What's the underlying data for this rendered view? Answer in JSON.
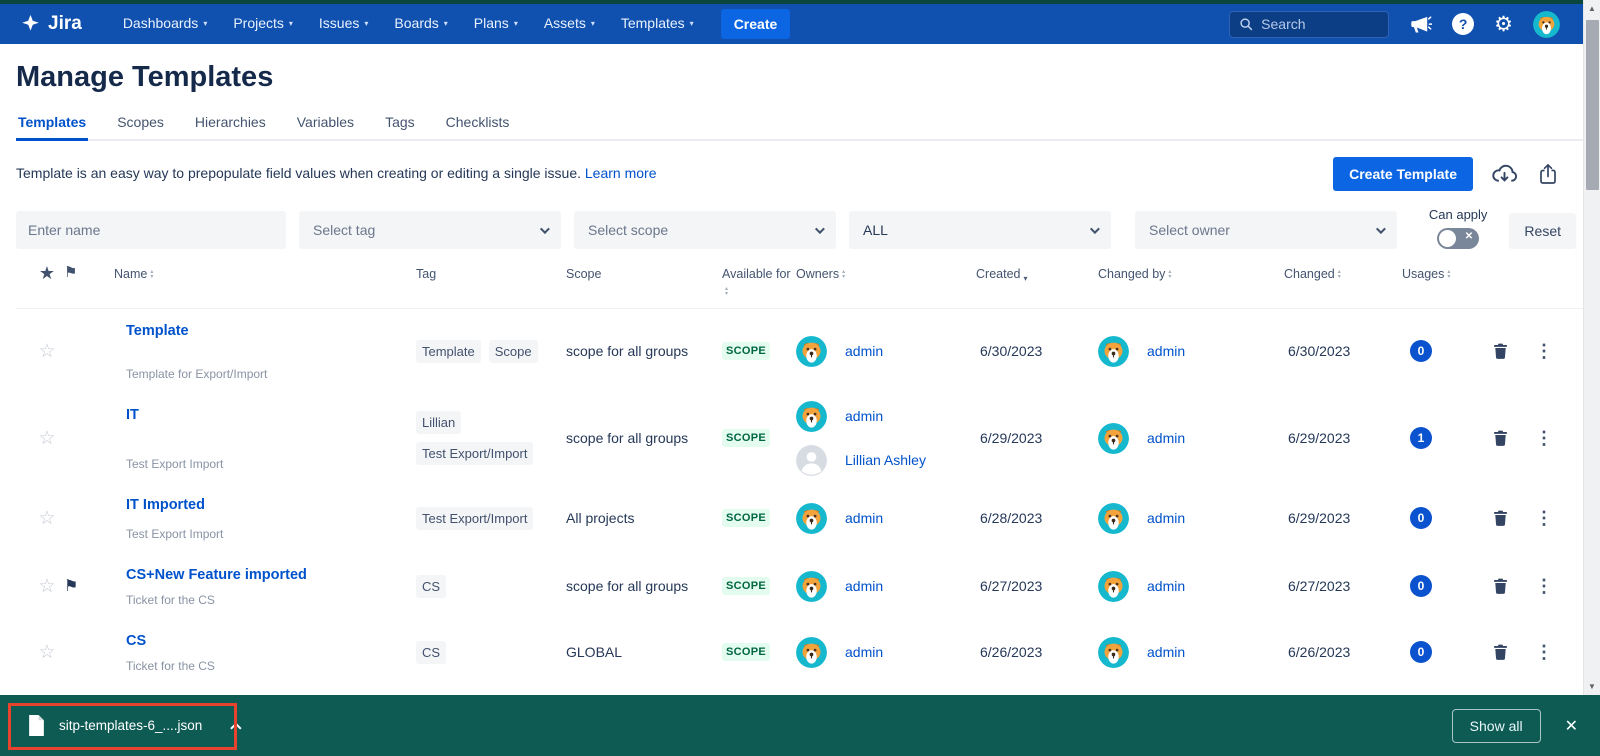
{
  "nav": {
    "brand": "Jira",
    "items": [
      "Dashboards",
      "Projects",
      "Issues",
      "Boards",
      "Plans",
      "Assets",
      "Templates"
    ],
    "create_label": "Create",
    "search_placeholder": "Search"
  },
  "page": {
    "title": "Manage Templates",
    "tabs": [
      {
        "label": "Templates",
        "active": true
      },
      {
        "label": "Scopes",
        "active": false
      },
      {
        "label": "Hierarchies",
        "active": false
      },
      {
        "label": "Variables",
        "active": false
      },
      {
        "label": "Tags",
        "active": false
      },
      {
        "label": "Checklists",
        "active": false
      }
    ],
    "description": "Template is an easy way to prepopulate field values when creating or editing a single issue.",
    "learn_more": "Learn more",
    "create_template_label": "Create Template"
  },
  "filters": {
    "name_placeholder": "Enter name",
    "tag_placeholder": "Select tag",
    "scope_placeholder": "Select scope",
    "available_value": "ALL",
    "owner_placeholder": "Select owner",
    "can_apply_label": "Can apply",
    "toggle_state": "off",
    "reset_label": "Reset"
  },
  "table": {
    "headers": [
      {
        "label": "Name",
        "sort": "both"
      },
      {
        "label": "Tag",
        "sort": "none"
      },
      {
        "label": "Scope",
        "sort": "none"
      },
      {
        "label": "Available for",
        "sort": "both"
      },
      {
        "label": "Owners",
        "sort": "both"
      },
      {
        "label": "Created",
        "sort": "desc"
      },
      {
        "label": "Changed by",
        "sort": "both"
      },
      {
        "label": "Changed",
        "sort": "both"
      },
      {
        "label": "Usages",
        "sort": "both"
      }
    ],
    "rows": [
      {
        "name": "Template",
        "description": "Template for Export/Import",
        "starred": false,
        "flagged": false,
        "tags": [
          "Template",
          "Scope"
        ],
        "scope": "scope for all groups",
        "available_for": "SCOPE",
        "owners": [
          {
            "name": "admin",
            "avatar": "dog"
          }
        ],
        "created": "6/30/2023",
        "changed_by": {
          "name": "admin",
          "avatar": "dog"
        },
        "changed": "6/30/2023",
        "usages": "0"
      },
      {
        "name": "IT",
        "description": "Test Export Import",
        "starred": false,
        "flagged": false,
        "tags": [
          "Lillian",
          "Test Export/Import"
        ],
        "scope": "scope for all groups",
        "available_for": "SCOPE",
        "owners": [
          {
            "name": "admin",
            "avatar": "dog"
          },
          {
            "name": "Lillian Ashley",
            "avatar": "person"
          }
        ],
        "created": "6/29/2023",
        "changed_by": {
          "name": "admin",
          "avatar": "dog"
        },
        "changed": "6/29/2023",
        "usages": "1"
      },
      {
        "name": "IT Imported",
        "description": "Test Export Import",
        "starred": false,
        "flagged": false,
        "tags": [
          "Test Export/Import"
        ],
        "scope": "All projects",
        "available_for": "SCOPE",
        "owners": [
          {
            "name": "admin",
            "avatar": "dog"
          }
        ],
        "created": "6/28/2023",
        "changed_by": {
          "name": "admin",
          "avatar": "dog"
        },
        "changed": "6/29/2023",
        "usages": "0"
      },
      {
        "name": "CS+New Feature imported",
        "description": "Ticket for the CS",
        "starred": false,
        "flagged": true,
        "tags": [
          "CS"
        ],
        "scope": "scope for all groups",
        "available_for": "SCOPE",
        "owners": [
          {
            "name": "admin",
            "avatar": "dog"
          }
        ],
        "created": "6/27/2023",
        "changed_by": {
          "name": "admin",
          "avatar": "dog"
        },
        "changed": "6/27/2023",
        "usages": "0"
      },
      {
        "name": "CS",
        "description": "Ticket for the CS",
        "starred": false,
        "flagged": false,
        "tags": [
          "CS"
        ],
        "scope": "GLOBAL",
        "available_for": "SCOPE",
        "owners": [
          {
            "name": "admin",
            "avatar": "dog"
          }
        ],
        "created": "6/26/2023",
        "changed_by": {
          "name": "admin",
          "avatar": "dog"
        },
        "changed": "6/26/2023",
        "usages": "0"
      }
    ]
  },
  "download_bar": {
    "filename": "sitp-templates-6_....json",
    "show_all_label": "Show all"
  },
  "colors": {
    "nav_blue": "#1050AF",
    "accent_blue": "#0052CC",
    "create_button_blue": "#0C66E4",
    "scope_badge_bg": "#E3FCEF",
    "scope_badge_text": "#006644",
    "usages_badge": "#0B53CE",
    "shelf_teal": "#0E5B54",
    "annotation_red": "#E8432C",
    "avatar_teal": "#16B8CE"
  }
}
